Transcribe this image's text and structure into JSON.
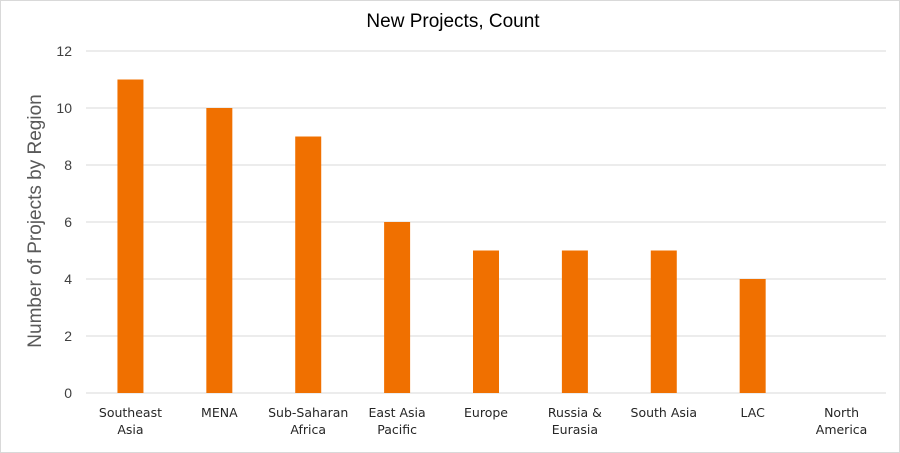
{
  "chart_data": {
    "type": "bar",
    "title": "New Projects, Count",
    "xlabel": "",
    "ylabel": "Number of Projects by Region",
    "categories": [
      [
        "Southeast",
        "Asia"
      ],
      [
        "MENA"
      ],
      [
        "Sub-Saharan",
        "Africa"
      ],
      [
        "East Asia",
        "Pacific"
      ],
      [
        "Europe"
      ],
      [
        "Russia &",
        "Eurasia"
      ],
      [
        "South Asia"
      ],
      [
        "LAC"
      ],
      [
        "North",
        "America"
      ]
    ],
    "values": [
      11,
      10,
      9,
      6,
      5,
      5,
      5,
      4,
      0
    ],
    "ylim": [
      0,
      12
    ],
    "yticks": [
      0,
      2,
      4,
      6,
      8,
      10,
      12
    ],
    "grid": true,
    "legend": "none",
    "bar_color": "#F07000"
  }
}
